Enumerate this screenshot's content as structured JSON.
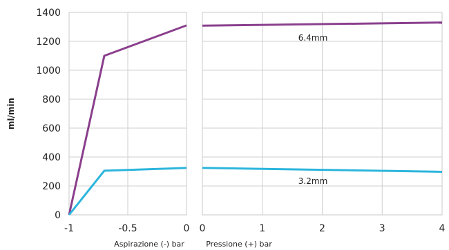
{
  "chart_data": {
    "type": "line",
    "ylabel": "ml/min",
    "ylim": [
      0,
      1400
    ],
    "yticks": [
      "0",
      "200",
      "400",
      "600",
      "800",
      "1000",
      "1200",
      "1400"
    ],
    "grid": true,
    "panels": [
      {
        "xlabel": "Aspirazione (-) bar",
        "xlim": [
          -1,
          0
        ],
        "xticks": [
          "-1",
          "-0.5",
          "0"
        ],
        "series": [
          {
            "name": "6.4mm",
            "color": "#8a3f8c",
            "x": [
              -1,
              -0.7,
              0
            ],
            "y": [
              0,
              1100,
              1310
            ]
          },
          {
            "name": "3.2mm",
            "color": "#2bb5dc",
            "x": [
              -1,
              -0.7,
              0
            ],
            "y": [
              0,
              305,
              325
            ]
          }
        ]
      },
      {
        "xlabel": "Pressione (+) bar",
        "xlim": [
          0,
          4
        ],
        "xticks": [
          "0",
          "1",
          "2",
          "3",
          "4"
        ],
        "series": [
          {
            "name": "6.4mm",
            "color": "#8a3f8c",
            "x": [
              0,
              4
            ],
            "y": [
              1308,
              1330
            ]
          },
          {
            "name": "3.2mm",
            "color": "#2bb5dc",
            "x": [
              0,
              4
            ],
            "y": [
              325,
              298
            ]
          }
        ]
      }
    ],
    "annotations": [
      {
        "text": "6.4mm",
        "panel": 1,
        "x": 1.6,
        "y": 1310
      },
      {
        "text": "3.2mm",
        "panel": 1,
        "x": 1.6,
        "y": 318
      }
    ]
  }
}
